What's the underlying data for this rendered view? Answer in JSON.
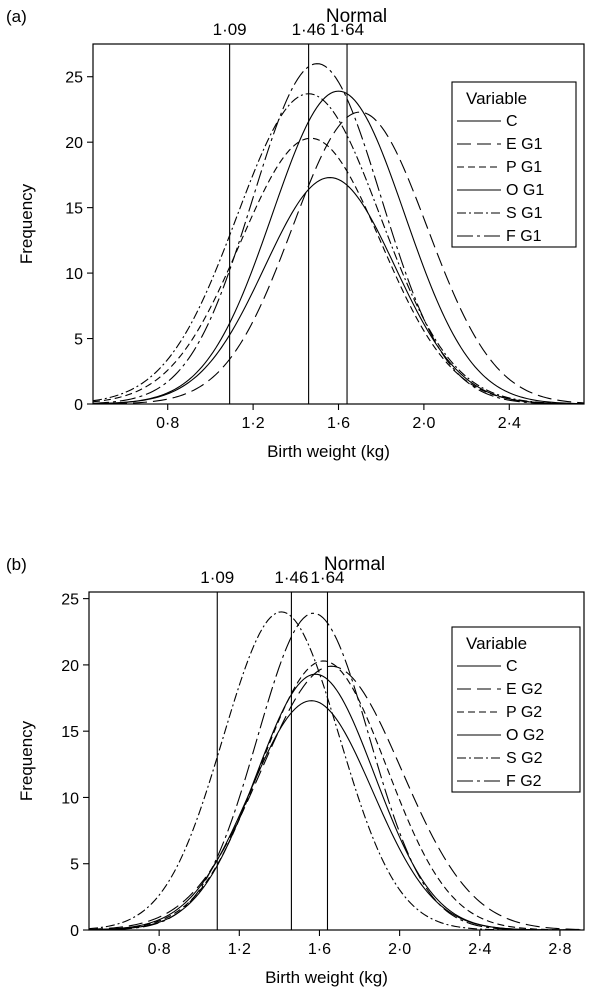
{
  "chart_data": [
    {
      "type": "line",
      "panel_label": "(a)",
      "title": "Normal",
      "xlabel": "Birth weight (kg)",
      "ylabel": "Frequency",
      "xlim": [
        0.45,
        2.75
      ],
      "ylim": [
        0,
        27.5
      ],
      "xticks": [
        0.8,
        1.2,
        1.6,
        2.0,
        2.4
      ],
      "xtick_labels": [
        "0·8",
        "1·2",
        "1·6",
        "2·0",
        "2·4"
      ],
      "yticks": [
        0,
        5,
        10,
        15,
        20,
        25
      ],
      "ytick_labels": [
        "0",
        "5",
        "10",
        "15",
        "20",
        "25"
      ],
      "ref_lines": [
        1.09,
        1.46,
        1.64
      ],
      "ref_labels": [
        "1·09",
        "1·46",
        "1·64"
      ],
      "legend": {
        "title": "Variable",
        "position": "top-right"
      },
      "series": [
        {
          "name": "C",
          "dash": "solid",
          "mean": 1.56,
          "sd": 0.305,
          "peak": 17.3
        },
        {
          "name": "E G1",
          "dash": "longdash",
          "mean": 1.7,
          "sd": 0.315,
          "peak": 22.3
        },
        {
          "name": "P G1",
          "dash": "dash",
          "mean": 1.47,
          "sd": 0.33,
          "peak": 20.3
        },
        {
          "name": "O G1",
          "dash": "solid",
          "mean": 1.6,
          "sd": 0.31,
          "peak": 23.9
        },
        {
          "name": "S G1",
          "dash": "dashdot",
          "mean": 1.46,
          "sd": 0.335,
          "peak": 23.7
        },
        {
          "name": "F G1",
          "dash": "longdashdot",
          "mean": 1.5,
          "sd": 0.3,
          "peak": 26.0
        }
      ]
    },
    {
      "type": "line",
      "panel_label": "(b)",
      "title": "Normal",
      "xlabel": "Birth weight (kg)",
      "ylabel": "Frequency",
      "xlim": [
        0.45,
        2.92
      ],
      "ylim": [
        0,
        25.5
      ],
      "xticks": [
        0.8,
        1.2,
        1.6,
        2.0,
        2.4,
        2.8
      ],
      "xtick_labels": [
        "0·8",
        "1·2",
        "1·6",
        "2·0",
        "2·4",
        "2·8"
      ],
      "yticks": [
        0,
        5,
        10,
        15,
        20,
        25
      ],
      "ytick_labels": [
        "0",
        "5",
        "10",
        "15",
        "20",
        "25"
      ],
      "ref_lines": [
        1.09,
        1.46,
        1.64
      ],
      "ref_labels": [
        "1·09",
        "1·46",
        "1·64"
      ],
      "legend": {
        "title": "Variable",
        "position": "top-right"
      },
      "series": [
        {
          "name": "C",
          "dash": "solid",
          "mean": 1.56,
          "sd": 0.305,
          "peak": 17.3
        },
        {
          "name": "E G2",
          "dash": "longdash",
          "mean": 1.66,
          "sd": 0.35,
          "peak": 19.9
        },
        {
          "name": "P G2",
          "dash": "dash",
          "mean": 1.62,
          "sd": 0.315,
          "peak": 20.3
        },
        {
          "name": "O G2",
          "dash": "solid",
          "mean": 1.58,
          "sd": 0.295,
          "peak": 19.3
        },
        {
          "name": "S G2",
          "dash": "dashdot",
          "mean": 1.41,
          "sd": 0.29,
          "peak": 24.0
        },
        {
          "name": "F G2",
          "dash": "longdashdot",
          "mean": 1.57,
          "sd": 0.28,
          "peak": 23.9
        }
      ]
    }
  ]
}
